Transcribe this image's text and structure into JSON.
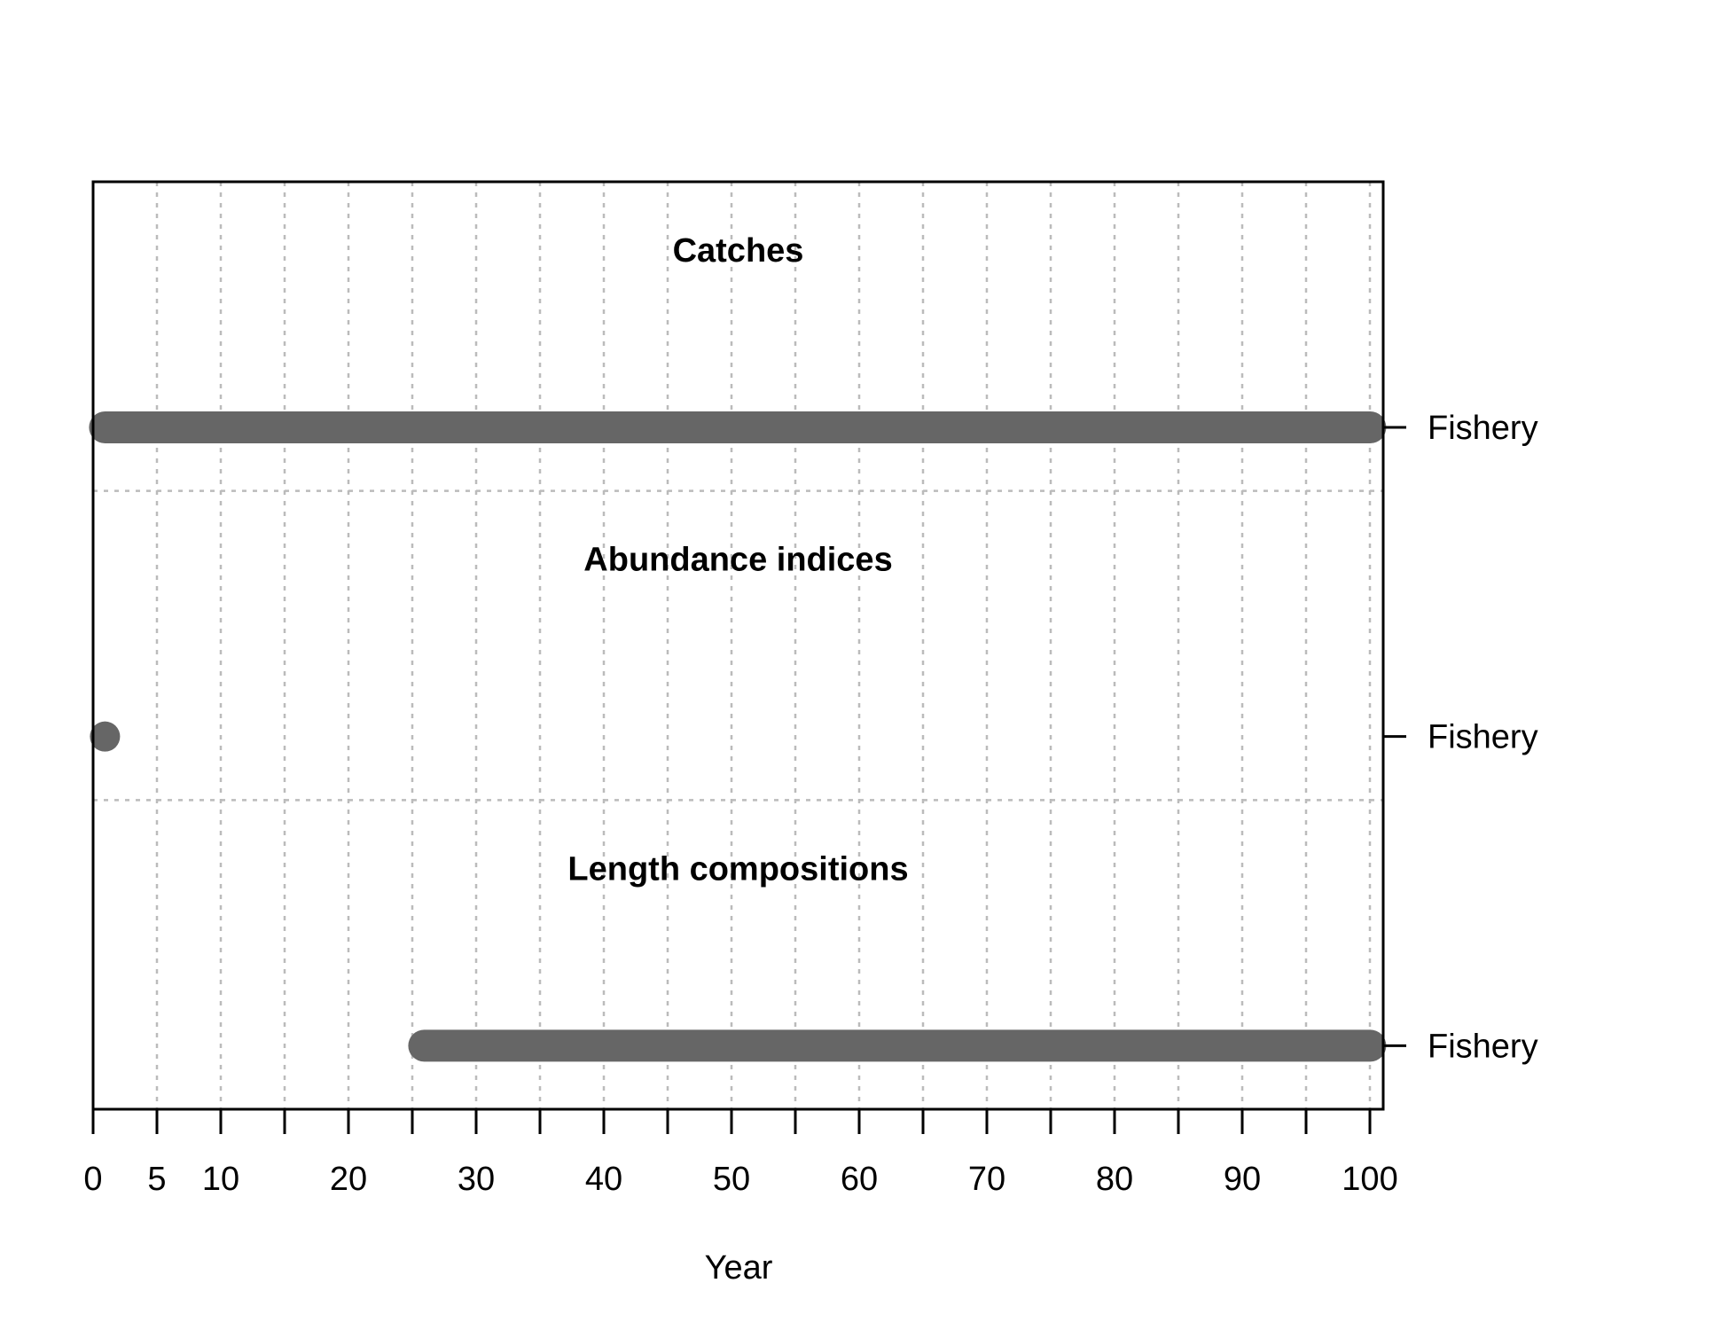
{
  "chart_data": {
    "type": "timeline",
    "xlabel": "Year",
    "xlim": [
      0,
      101
    ],
    "x_ticks": [
      0,
      5,
      10,
      15,
      20,
      25,
      30,
      35,
      40,
      45,
      50,
      55,
      60,
      65,
      70,
      75,
      80,
      85,
      90,
      95,
      100
    ],
    "x_tick_labels": [
      "0",
      "5",
      "10",
      "",
      "20",
      "",
      "30",
      "",
      "40",
      "",
      "50",
      "",
      "60",
      "",
      "70",
      "",
      "80",
      "",
      "90",
      "",
      "100"
    ],
    "grid": true,
    "mark_color": "#666666",
    "sections": [
      {
        "title": "Catches",
        "label": "Fishery",
        "start": 1,
        "end": 101
      },
      {
        "title": "Abundance indices",
        "label": "Fishery",
        "start": 1,
        "end": 1
      },
      {
        "title": "Length compositions",
        "label": "Fishery",
        "start": 26,
        "end": 101
      }
    ]
  }
}
